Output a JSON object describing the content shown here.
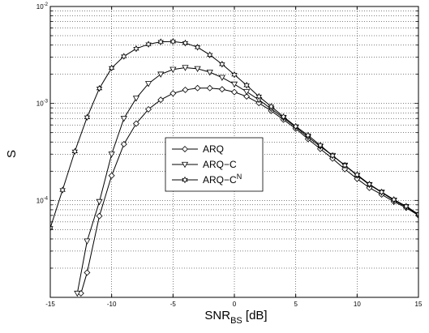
{
  "chart_data": {
    "type": "line",
    "xlabel": "SNR",
    "xlabel_sub": "BS",
    "xlabel_unit": "[dB]",
    "ylabel": "S",
    "xlim": [
      -15,
      15
    ],
    "ylim": [
      1e-05,
      0.01
    ],
    "yscale": "log",
    "grid": true,
    "legend_position": "center",
    "x_ticks": [
      "-15",
      "-10",
      "-5",
      "0",
      "5",
      "10",
      "15"
    ],
    "y_ticks": [
      {
        "base": "10",
        "exp": "-4",
        "value": 0.0001
      },
      {
        "base": "10",
        "exp": "-3",
        "value": 0.001
      },
      {
        "base": "10",
        "exp": "-2",
        "value": 0.01
      }
    ],
    "series": [
      {
        "name": "ARQ",
        "name_sup": "",
        "marker": "diamond",
        "x": [
          -12.5,
          -12,
          -11,
          -10,
          -9,
          -8,
          -7,
          -6,
          -5,
          -4,
          -3,
          -2,
          -1,
          0,
          1,
          2,
          3,
          4,
          5,
          6,
          7,
          8,
          9,
          10,
          11,
          12,
          13,
          14,
          15
        ],
        "y": [
          1.1e-05,
          1.8e-05,
          6.9e-05,
          0.00018,
          0.00038,
          0.00062,
          0.00087,
          0.00109,
          0.00127,
          0.00138,
          0.00144,
          0.00144,
          0.0014,
          0.00131,
          0.00118,
          0.00101,
          0.00084,
          0.00068,
          0.00055,
          0.00043,
          0.00034,
          0.00027,
          0.00021,
          0.000167,
          0.000135,
          0.000115,
          9.7e-05,
          8.4e-05,
          7e-05
        ]
      },
      {
        "name": "ARQ−C",
        "name_sup": "",
        "marker": "triangle-down",
        "x": [
          -12.8,
          -12,
          -11,
          -10,
          -9,
          -8,
          -7,
          -6,
          -5,
          -4,
          -3,
          -2,
          -1,
          0,
          1,
          2,
          3,
          4,
          5,
          6,
          7,
          8,
          9,
          10,
          11,
          12,
          13,
          14,
          15
        ],
        "y": [
          1.1e-05,
          3.8e-05,
          9.7e-05,
          0.0003,
          0.0007,
          0.00113,
          0.0016,
          0.002,
          0.00224,
          0.00234,
          0.00228,
          0.0021,
          0.00185,
          0.00158,
          0.00132,
          0.00109,
          0.00088,
          0.00071,
          0.00057,
          0.00045,
          0.00036,
          0.00029,
          0.00023,
          0.000181,
          0.000145,
          0.000121,
          0.0001,
          8.6e-05,
          7.1e-05
        ]
      },
      {
        "name": "ARQ−C",
        "name_sup": "N",
        "marker": "hexagram",
        "x": [
          -15,
          -14,
          -13,
          -12,
          -11,
          -10,
          -9,
          -8,
          -7,
          -6,
          -5,
          -4,
          -3,
          -2,
          -1,
          0,
          1,
          2,
          3,
          4,
          5,
          6,
          7,
          8,
          9,
          10,
          11,
          12,
          13,
          14,
          15
        ],
        "y": [
          5.2e-05,
          0.000128,
          0.00032,
          0.00072,
          0.00143,
          0.00232,
          0.00306,
          0.00367,
          0.00408,
          0.00432,
          0.00435,
          0.0042,
          0.0038,
          0.00317,
          0.00254,
          0.00198,
          0.00154,
          0.00118,
          0.00093,
          0.00073,
          0.00058,
          0.00047,
          0.00037,
          0.00029,
          0.00023,
          0.000184,
          0.000147,
          0.000122,
          0.000102,
          8.7e-05,
          7.2e-05
        ]
      }
    ]
  }
}
